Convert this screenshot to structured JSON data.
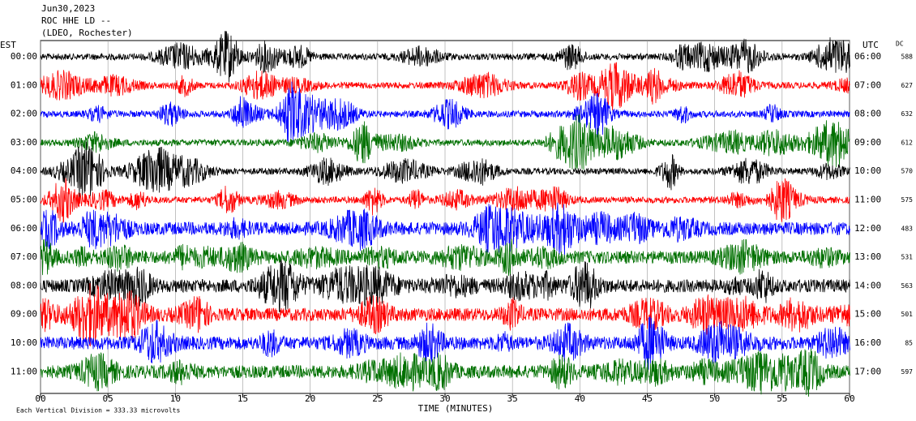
{
  "chart_data": {
    "type": "helicorder",
    "title": [
      "Jun30,2023",
      "ROC HHE LD --",
      "(LDEO, Rochester)"
    ],
    "left_axis_label": "EST",
    "right_axis_label": "UTC",
    "dc_label": "DC",
    "xlabel": "TIME (MINUTES)",
    "footnote": "Each Vertical Division =  333.33 microvolts",
    "xlim": [
      0,
      60
    ],
    "xticks": [
      {
        "value": 0,
        "label": "00"
      },
      {
        "value": 5,
        "label": "05"
      },
      10,
      15,
      20,
      25,
      30,
      35,
      40,
      45,
      50,
      55,
      60
    ],
    "rows": [
      {
        "est": "00:00",
        "utc": "06:00",
        "dc": 588,
        "color": "#000000"
      },
      {
        "est": "01:00",
        "utc": "07:00",
        "dc": 627,
        "color": "#ff0000"
      },
      {
        "est": "02:00",
        "utc": "08:00",
        "dc": 632,
        "color": "#0000ff"
      },
      {
        "est": "03:00",
        "utc": "09:00",
        "dc": 612,
        "color": "#007000"
      },
      {
        "est": "04:00",
        "utc": "10:00",
        "dc": 570,
        "color": "#000000"
      },
      {
        "est": "05:00",
        "utc": "11:00",
        "dc": 575,
        "color": "#ff0000"
      },
      {
        "est": "06:00",
        "utc": "12:00",
        "dc": 483,
        "color": "#0000ff"
      },
      {
        "est": "07:00",
        "utc": "13:00",
        "dc": 531,
        "color": "#007000"
      },
      {
        "est": "08:00",
        "utc": "14:00",
        "dc": 563,
        "color": "#000000"
      },
      {
        "est": "09:00",
        "utc": "15:00",
        "dc": 501,
        "color": "#ff0000"
      },
      {
        "est": "10:00",
        "utc": "16:00",
        "dc": 85,
        "color": "#0000ff"
      },
      {
        "est": "11:00",
        "utc": "17:00",
        "dc": 597,
        "color": "#007000"
      }
    ]
  }
}
